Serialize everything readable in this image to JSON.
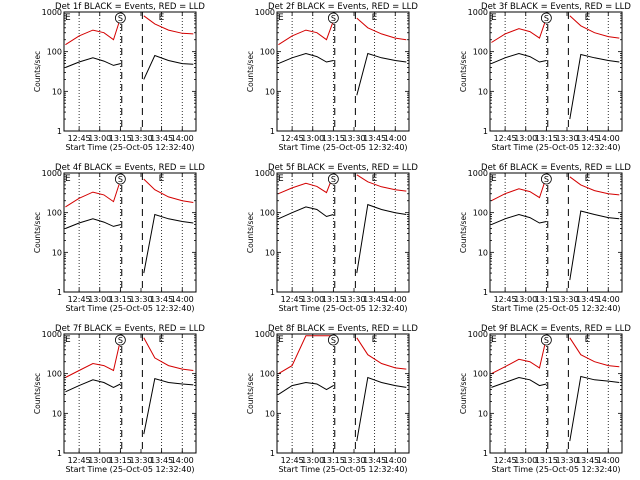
{
  "colors": {
    "events": "#000000",
    "lld": "#d40000",
    "axes": "#000000",
    "background": "#ffffff"
  },
  "chart_data": [
    {
      "type": "line",
      "title": "Det 1f BLACK = Events, RED = LLD",
      "xlabel": "Start Time (25-Oct-05 12:32:40)",
      "ylabel": "Counts/sec",
      "yscale": "log",
      "ylim": [
        1,
        1000
      ],
      "yticks": [
        "1",
        "10",
        "100",
        "1000"
      ],
      "xlim": [
        "12:34",
        "14:10"
      ],
      "xticks": [
        "12:45",
        "13:00",
        "13:15",
        "13:30",
        "13:45",
        "14:00"
      ],
      "markers": [
        "E",
        "S",
        "E"
      ],
      "gap": [
        "13:16",
        "13:31"
      ],
      "series": [
        {
          "name": "Events",
          "x": [
            "12:35",
            "12:45",
            "12:55",
            "13:03",
            "13:10",
            "13:15",
            "13:32",
            "13:40",
            "13:50",
            "14:00",
            "14:08"
          ],
          "y": [
            40,
            55,
            70,
            58,
            45,
            50,
            20,
            80,
            60,
            50,
            48
          ]
        },
        {
          "name": "LLD",
          "x": [
            "12:35",
            "12:45",
            "12:55",
            "13:03",
            "13:10",
            "13:15",
            "13:32",
            "13:40",
            "13:50",
            "14:00",
            "14:08"
          ],
          "y": [
            150,
            250,
            350,
            300,
            200,
            700,
            800,
            500,
            350,
            290,
            280
          ]
        }
      ]
    },
    {
      "type": "line",
      "title": "Det 2f BLACK = Events, RED = LLD",
      "xlabel": "Start Time (25-Oct-05 12:32:40)",
      "ylabel": "Counts/sec",
      "yscale": "log",
      "ylim": [
        1,
        1000
      ],
      "yticks": [
        "1",
        "10",
        "100",
        "1000"
      ],
      "xlim": [
        "12:34",
        "14:10"
      ],
      "xticks": [
        "12:45",
        "13:00",
        "13:15",
        "13:30",
        "13:45",
        "14:00"
      ],
      "markers": [
        "E",
        "S",
        "E"
      ],
      "gap": [
        "13:16",
        "13:31"
      ],
      "series": [
        {
          "name": "Events",
          "x": [
            "12:35",
            "12:45",
            "12:55",
            "13:03",
            "13:10",
            "13:15",
            "13:32",
            "13:40",
            "13:50",
            "14:00",
            "14:08"
          ],
          "y": [
            50,
            70,
            90,
            75,
            55,
            60,
            8,
            90,
            70,
            60,
            55
          ]
        },
        {
          "name": "LLD",
          "x": [
            "12:35",
            "12:45",
            "12:55",
            "13:03",
            "13:10",
            "13:15",
            "13:32",
            "13:40",
            "13:50",
            "14:00",
            "14:08"
          ],
          "y": [
            150,
            250,
            350,
            300,
            200,
            600,
            700,
            400,
            280,
            220,
            200
          ]
        }
      ]
    },
    {
      "type": "line",
      "title": "Det 3f BLACK = Events, RED = LLD",
      "xlabel": "Start Time (25-Oct-05 12:32:40)",
      "ylabel": "Counts/sec",
      "yscale": "log",
      "ylim": [
        1,
        1000
      ],
      "yticks": [
        "1",
        "10",
        "100",
        "1000"
      ],
      "xlim": [
        "12:34",
        "14:10"
      ],
      "xticks": [
        "12:45",
        "13:00",
        "13:15",
        "13:30",
        "13:45",
        "14:00"
      ],
      "markers": [
        "E",
        "S",
        "E"
      ],
      "gap": [
        "13:16",
        "13:31"
      ],
      "series": [
        {
          "name": "Events",
          "x": [
            "12:35",
            "12:45",
            "12:55",
            "13:03",
            "13:10",
            "13:15",
            "13:32",
            "13:40",
            "13:50",
            "14:00",
            "14:08"
          ],
          "y": [
            50,
            70,
            90,
            75,
            55,
            60,
            2,
            85,
            70,
            60,
            55
          ]
        },
        {
          "name": "LLD",
          "x": [
            "12:35",
            "12:45",
            "12:55",
            "13:03",
            "13:10",
            "13:15",
            "13:32",
            "13:40",
            "13:50",
            "14:00",
            "14:08"
          ],
          "y": [
            170,
            280,
            380,
            320,
            220,
            700,
            800,
            450,
            300,
            240,
            220
          ]
        }
      ]
    },
    {
      "type": "line",
      "title": "Det 4f BLACK = Events, RED = LLD",
      "xlabel": "Start Time (25-Oct-05 12:32:40)",
      "ylabel": "Counts/sec",
      "yscale": "log",
      "ylim": [
        1,
        1000
      ],
      "yticks": [
        "1",
        "10",
        "100",
        "1000"
      ],
      "xlim": [
        "12:34",
        "14:10"
      ],
      "xticks": [
        "12:45",
        "13:00",
        "13:15",
        "13:30",
        "13:45",
        "14:00"
      ],
      "markers": [
        "E",
        "S",
        "E"
      ],
      "gap": [
        "13:16",
        "13:31"
      ],
      "series": [
        {
          "name": "Events",
          "x": [
            "12:35",
            "12:45",
            "12:55",
            "13:03",
            "13:10",
            "13:15",
            "13:32",
            "13:40",
            "13:50",
            "14:00",
            "14:08"
          ],
          "y": [
            40,
            55,
            70,
            58,
            45,
            50,
            3,
            90,
            70,
            60,
            55
          ]
        },
        {
          "name": "LLD",
          "x": [
            "12:35",
            "12:45",
            "12:55",
            "13:03",
            "13:10",
            "13:15",
            "13:32",
            "13:40",
            "13:50",
            "14:00",
            "14:08"
          ],
          "y": [
            140,
            230,
            330,
            280,
            190,
            650,
            700,
            380,
            250,
            200,
            180
          ]
        }
      ]
    },
    {
      "type": "line",
      "title": "Det 5f BLACK = Events, RED = LLD",
      "xlabel": "Start Time (25-Oct-05 12:32:40)",
      "ylabel": "Counts/sec",
      "yscale": "log",
      "ylim": [
        1,
        1000
      ],
      "yticks": [
        "1",
        "10",
        "100",
        "1000"
      ],
      "xlim": [
        "12:34",
        "14:10"
      ],
      "xticks": [
        "12:45",
        "13:00",
        "13:15",
        "13:30",
        "13:45",
        "14:00"
      ],
      "markers": [
        "E",
        "S",
        "E"
      ],
      "gap": [
        "13:16",
        "13:31"
      ],
      "series": [
        {
          "name": "Events",
          "x": [
            "12:35",
            "12:45",
            "12:55",
            "13:03",
            "13:10",
            "13:15",
            "13:32",
            "13:40",
            "13:50",
            "14:00",
            "14:08"
          ],
          "y": [
            70,
            100,
            140,
            120,
            80,
            90,
            3,
            160,
            120,
            100,
            90
          ]
        },
        {
          "name": "LLD",
          "x": [
            "12:35",
            "12:45",
            "12:55",
            "13:03",
            "13:10",
            "13:15",
            "13:32",
            "13:40",
            "13:50",
            "14:00",
            "14:08"
          ],
          "y": [
            300,
            420,
            550,
            460,
            320,
            900,
            900,
            600,
            450,
            380,
            350
          ]
        }
      ]
    },
    {
      "type": "line",
      "title": "Det 6f BLACK = Events, RED = LLD",
      "xlabel": "Start Time (25-Oct-05 12:32:40)",
      "ylabel": "Counts/sec",
      "yscale": "log",
      "ylim": [
        1,
        1000
      ],
      "yticks": [
        "1",
        "10",
        "100",
        "1000"
      ],
      "xlim": [
        "12:34",
        "14:10"
      ],
      "xticks": [
        "12:45",
        "13:00",
        "13:15",
        "13:30",
        "13:45",
        "14:00"
      ],
      "markers": [
        "E",
        "S",
        "E"
      ],
      "gap": [
        "13:16",
        "13:31"
      ],
      "series": [
        {
          "name": "Events",
          "x": [
            "12:35",
            "12:45",
            "12:55",
            "13:03",
            "13:10",
            "13:15",
            "13:32",
            "13:40",
            "13:50",
            "14:00",
            "14:08"
          ],
          "y": [
            50,
            70,
            90,
            75,
            55,
            60,
            2,
            110,
            90,
            75,
            70
          ]
        },
        {
          "name": "LLD",
          "x": [
            "12:35",
            "12:45",
            "12:55",
            "13:03",
            "13:10",
            "13:15",
            "13:32",
            "13:40",
            "13:50",
            "14:00",
            "14:08"
          ],
          "y": [
            200,
            300,
            400,
            340,
            240,
            800,
            800,
            500,
            360,
            300,
            280
          ]
        }
      ]
    },
    {
      "type": "line",
      "title": "Det 7f BLACK = Events, RED = LLD",
      "xlabel": "Start Time (25-Oct-05 12:32:40)",
      "ylabel": "Counts/sec",
      "yscale": "log",
      "ylim": [
        1,
        1000
      ],
      "yticks": [
        "1",
        "10",
        "100",
        "1000"
      ],
      "xlim": [
        "12:34",
        "14:10"
      ],
      "xticks": [
        "12:45",
        "13:00",
        "13:15",
        "13:30",
        "13:45",
        "14:00"
      ],
      "markers": [
        "E",
        "S",
        "E"
      ],
      "gap": [
        "13:16",
        "13:31"
      ],
      "series": [
        {
          "name": "Events",
          "x": [
            "12:35",
            "12:45",
            "12:55",
            "13:03",
            "13:10",
            "13:15",
            "13:32",
            "13:40",
            "13:50",
            "14:00",
            "14:08"
          ],
          "y": [
            35,
            50,
            70,
            60,
            45,
            55,
            3,
            75,
            60,
            55,
            52
          ]
        },
        {
          "name": "LLD",
          "x": [
            "12:35",
            "12:45",
            "12:55",
            "13:03",
            "13:10",
            "13:15",
            "13:32",
            "13:40",
            "13:50",
            "14:00",
            "14:08"
          ],
          "y": [
            80,
            120,
            180,
            160,
            120,
            700,
            800,
            250,
            160,
            130,
            120
          ]
        }
      ]
    },
    {
      "type": "line",
      "title": "Det 8f BLACK = Events, RED = LLD",
      "xlabel": "Start Time (25-Oct-05 12:32:40)",
      "ylabel": "Counts/sec",
      "yscale": "log",
      "ylim": [
        1,
        1000
      ],
      "yticks": [
        "1",
        "10",
        "100",
        "1000"
      ],
      "xlim": [
        "12:34",
        "14:10"
      ],
      "xticks": [
        "12:45",
        "13:00",
        "13:15",
        "13:30",
        "13:45",
        "14:00"
      ],
      "markers": [
        "E",
        "S",
        "E"
      ],
      "gap": [
        "13:16",
        "13:31"
      ],
      "series": [
        {
          "name": "Events",
          "x": [
            "12:35",
            "12:45",
            "12:55",
            "13:03",
            "13:10",
            "13:15",
            "13:32",
            "13:40",
            "13:50",
            "14:00",
            "14:08"
          ],
          "y": [
            30,
            50,
            60,
            55,
            40,
            50,
            2,
            80,
            60,
            50,
            45
          ]
        },
        {
          "name": "LLD",
          "x": [
            "12:35",
            "12:45",
            "12:55",
            "13:03",
            "13:10",
            "13:15",
            "13:32",
            "13:40",
            "13:50",
            "14:00",
            "14:08"
          ],
          "y": [
            100,
            160,
            900,
            900,
            900,
            900,
            800,
            300,
            180,
            140,
            130
          ]
        }
      ]
    },
    {
      "type": "line",
      "title": "Det 9f BLACK = Events, RED = LLD",
      "xlabel": "Start Time (25-Oct-05 12:32:40)",
      "ylabel": "Counts/sec",
      "yscale": "log",
      "ylim": [
        1,
        1000
      ],
      "yticks": [
        "1",
        "10",
        "100",
        "1000"
      ],
      "xlim": [
        "12:34",
        "14:10"
      ],
      "xticks": [
        "12:45",
        "13:00",
        "13:15",
        "13:30",
        "13:45",
        "14:00"
      ],
      "markers": [
        "E",
        "S",
        "E"
      ],
      "gap": [
        "13:16",
        "13:31"
      ],
      "series": [
        {
          "name": "Events",
          "x": [
            "12:35",
            "12:45",
            "12:55",
            "13:03",
            "13:10",
            "13:15",
            "13:32",
            "13:40",
            "13:50",
            "14:00",
            "14:08"
          ],
          "y": [
            45,
            60,
            80,
            70,
            50,
            55,
            2,
            85,
            70,
            65,
            60
          ]
        },
        {
          "name": "LLD",
          "x": [
            "12:35",
            "12:45",
            "12:55",
            "13:03",
            "13:10",
            "13:15",
            "13:32",
            "13:40",
            "13:50",
            "14:00",
            "14:08"
          ],
          "y": [
            100,
            150,
            230,
            200,
            140,
            800,
            800,
            300,
            200,
            160,
            150
          ]
        }
      ]
    }
  ]
}
